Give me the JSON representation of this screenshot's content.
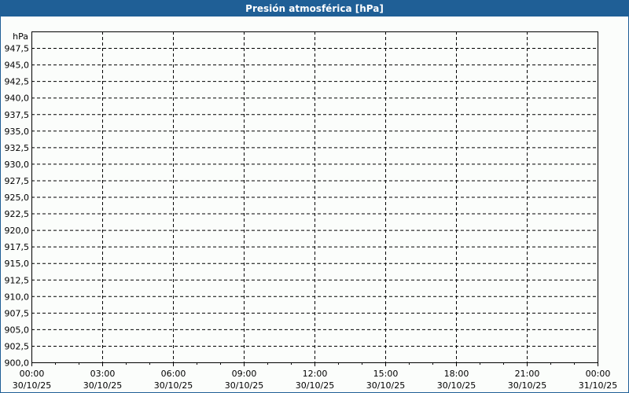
{
  "chart_data": {
    "type": "line",
    "title": "Presión atmosférica [hPa]",
    "ylabel": "hPa",
    "ylim": [
      900,
      950
    ],
    "y_ticks": [
      "900,0",
      "902,5",
      "905,0",
      "907,5",
      "910,0",
      "912,5",
      "915,0",
      "917,5",
      "920,0",
      "922,5",
      "925,0",
      "927,5",
      "930,0",
      "932,5",
      "935,0",
      "937,5",
      "940,0",
      "942,5",
      "945,0",
      "947,5"
    ],
    "x_ticks": [
      {
        "time": "00:00",
        "date": "30/10/25"
      },
      {
        "time": "03:00",
        "date": "30/10/25"
      },
      {
        "time": "06:00",
        "date": "30/10/25"
      },
      {
        "time": "09:00",
        "date": "30/10/25"
      },
      {
        "time": "12:00",
        "date": "30/10/25"
      },
      {
        "time": "15:00",
        "date": "30/10/25"
      },
      {
        "time": "18:00",
        "date": "30/10/25"
      },
      {
        "time": "21:00",
        "date": "30/10/25"
      },
      {
        "time": "00:00",
        "date": "31/10/25"
      }
    ],
    "series": [],
    "grid": true,
    "colors": {
      "titlebar": "#1f5f96",
      "background": "#fbfdfb"
    }
  }
}
